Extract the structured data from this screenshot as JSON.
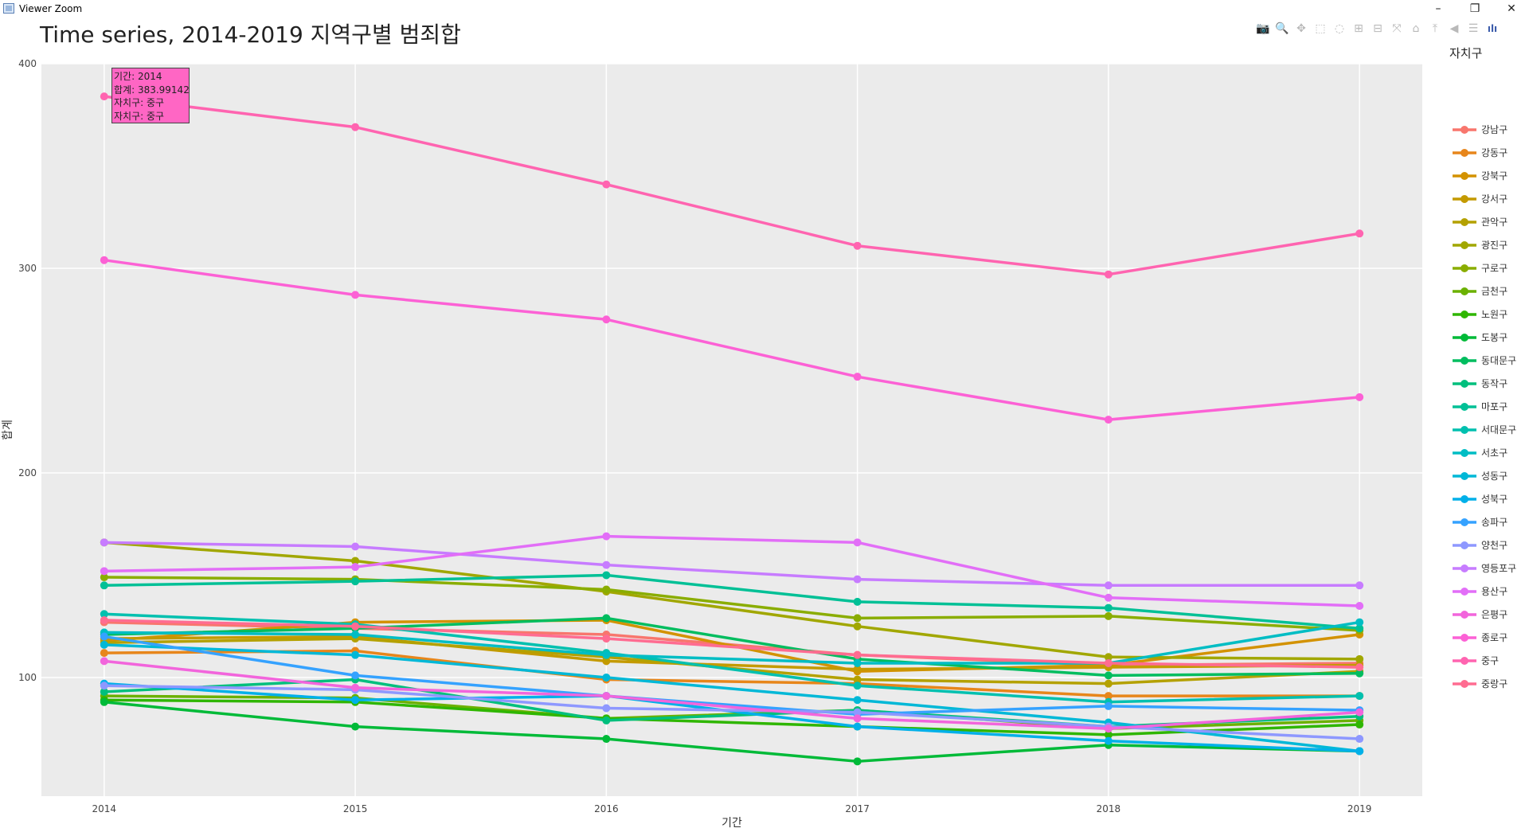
{
  "window": {
    "title": "Viewer Zoom",
    "minimize_glyph": "–",
    "restore_glyph": "❐",
    "close_glyph": "✕"
  },
  "plot_title": "Time series, 2014-2019 지역구별 범죄합",
  "modebar": [
    {
      "name": "camera-icon",
      "glyph": "📷"
    },
    {
      "name": "zoom-icon",
      "glyph": "🔍"
    },
    {
      "name": "pan-icon",
      "glyph": "✥"
    },
    {
      "name": "box-select-icon",
      "glyph": "⬚"
    },
    {
      "name": "lasso-select-icon",
      "glyph": "◌"
    },
    {
      "name": "zoom-in-icon",
      "glyph": "⊞"
    },
    {
      "name": "zoom-out-icon",
      "glyph": "⊟"
    },
    {
      "name": "autoscale-icon",
      "glyph": "⤧"
    },
    {
      "name": "reset-axes-icon",
      "glyph": "⌂"
    },
    {
      "name": "spike-lines-icon",
      "glyph": "⤒"
    },
    {
      "name": "hover-closest-icon",
      "glyph": "◀"
    },
    {
      "name": "hover-compare-icon",
      "glyph": "☰"
    },
    {
      "name": "plotly-logo-icon",
      "glyph": "ılı"
    }
  ],
  "hover": {
    "line1": "기간: 2014",
    "line2": "합계: 383.99142",
    "line3": "자치구: 중구",
    "line4": "자치구: 중구",
    "color": "#ff66c4"
  },
  "chart_data": {
    "type": "line",
    "title": "Time series, 2014-2019 지역구별 범죄합",
    "xlabel": "기간",
    "ylabel": "합계",
    "legend_title": "자치구",
    "legend_position": "right",
    "x": [
      2014,
      2015,
      2016,
      2017,
      2018,
      2019
    ],
    "xlim": [
      2013.75,
      2019.25
    ],
    "ylim": [
      42,
      400
    ],
    "yticks": [
      100,
      200,
      300,
      400
    ],
    "grid": true,
    "series": [
      {
        "name": "강남구",
        "color": "#f8766d",
        "values": [
          127,
          124,
          121,
          111,
          106,
          107
        ]
      },
      {
        "name": "강동구",
        "color": "#e7861b",
        "values": [
          112,
          113,
          99,
          97,
          91,
          91
        ]
      },
      {
        "name": "강북구",
        "color": "#d39200",
        "values": [
          118,
          127,
          128,
          103,
          106,
          121
        ]
      },
      {
        "name": "강서구",
        "color": "#c49a00",
        "values": [
          119,
          120,
          108,
          104,
          105,
          106
        ]
      },
      {
        "name": "관악구",
        "color": "#b4a100",
        "values": [
          117,
          119,
          110,
          99,
          97,
          103
        ]
      },
      {
        "name": "광진구",
        "color": "#a1a700",
        "values": [
          166,
          157,
          142,
          125,
          110,
          109
        ]
      },
      {
        "name": "구로구",
        "color": "#8aad00",
        "values": [
          149,
          148,
          143,
          129,
          130,
          123
        ]
      },
      {
        "name": "금천구",
        "color": "#6bb100",
        "values": [
          91,
          90,
          80,
          84,
          75,
          79
        ]
      },
      {
        "name": "노원구",
        "color": "#2fb600",
        "values": [
          89,
          88,
          80,
          76,
          72,
          77
        ]
      },
      {
        "name": "도봉구",
        "color": "#00ba38",
        "values": [
          88,
          76,
          70,
          59,
          67,
          64
        ]
      },
      {
        "name": "동대문구",
        "color": "#00bd5f",
        "values": [
          121,
          124,
          129,
          109,
          101,
          102
        ]
      },
      {
        "name": "동작구",
        "color": "#00bf7d",
        "values": [
          93,
          99,
          79,
          84,
          76,
          81
        ]
      },
      {
        "name": "마포구",
        "color": "#00c096",
        "values": [
          145,
          147,
          150,
          137,
          134,
          124
        ]
      },
      {
        "name": "서대문구",
        "color": "#00c0af",
        "values": [
          131,
          126,
          112,
          96,
          88,
          91
        ]
      },
      {
        "name": "서초구",
        "color": "#00bdc4",
        "values": [
          122,
          121,
          111,
          107,
          107,
          127
        ]
      },
      {
        "name": "성동구",
        "color": "#00b8d7",
        "values": [
          116,
          111,
          100,
          89,
          78,
          64
        ]
      },
      {
        "name": "성북구",
        "color": "#00b0e9",
        "values": [
          97,
          89,
          91,
          76,
          69,
          64
        ]
      },
      {
        "name": "송파구",
        "color": "#35a2ff",
        "values": [
          120,
          101,
          91,
          82,
          86,
          84
        ]
      },
      {
        "name": "양천구",
        "color": "#8e98ff",
        "values": [
          96,
          94,
          85,
          83,
          76,
          70
        ]
      },
      {
        "name": "영등포구",
        "color": "#c77cff",
        "values": [
          166,
          164,
          155,
          148,
          145,
          145
        ]
      },
      {
        "name": "용산구",
        "color": "#e26ef7",
        "values": [
          152,
          154,
          169,
          166,
          139,
          135
        ]
      },
      {
        "name": "은평구",
        "color": "#f265dc",
        "values": [
          108,
          95,
          91,
          80,
          75,
          83
        ]
      },
      {
        "name": "종로구",
        "color": "#fc61d5",
        "values": [
          304,
          287,
          275,
          247,
          226,
          237
        ]
      },
      {
        "name": "중구",
        "color": "#ff64b0",
        "values": [
          383.99142,
          369,
          341,
          311,
          297,
          317
        ]
      },
      {
        "name": "중랑구",
        "color": "#ff6c91",
        "values": [
          128,
          125,
          119,
          111,
          107,
          105
        ]
      }
    ]
  }
}
